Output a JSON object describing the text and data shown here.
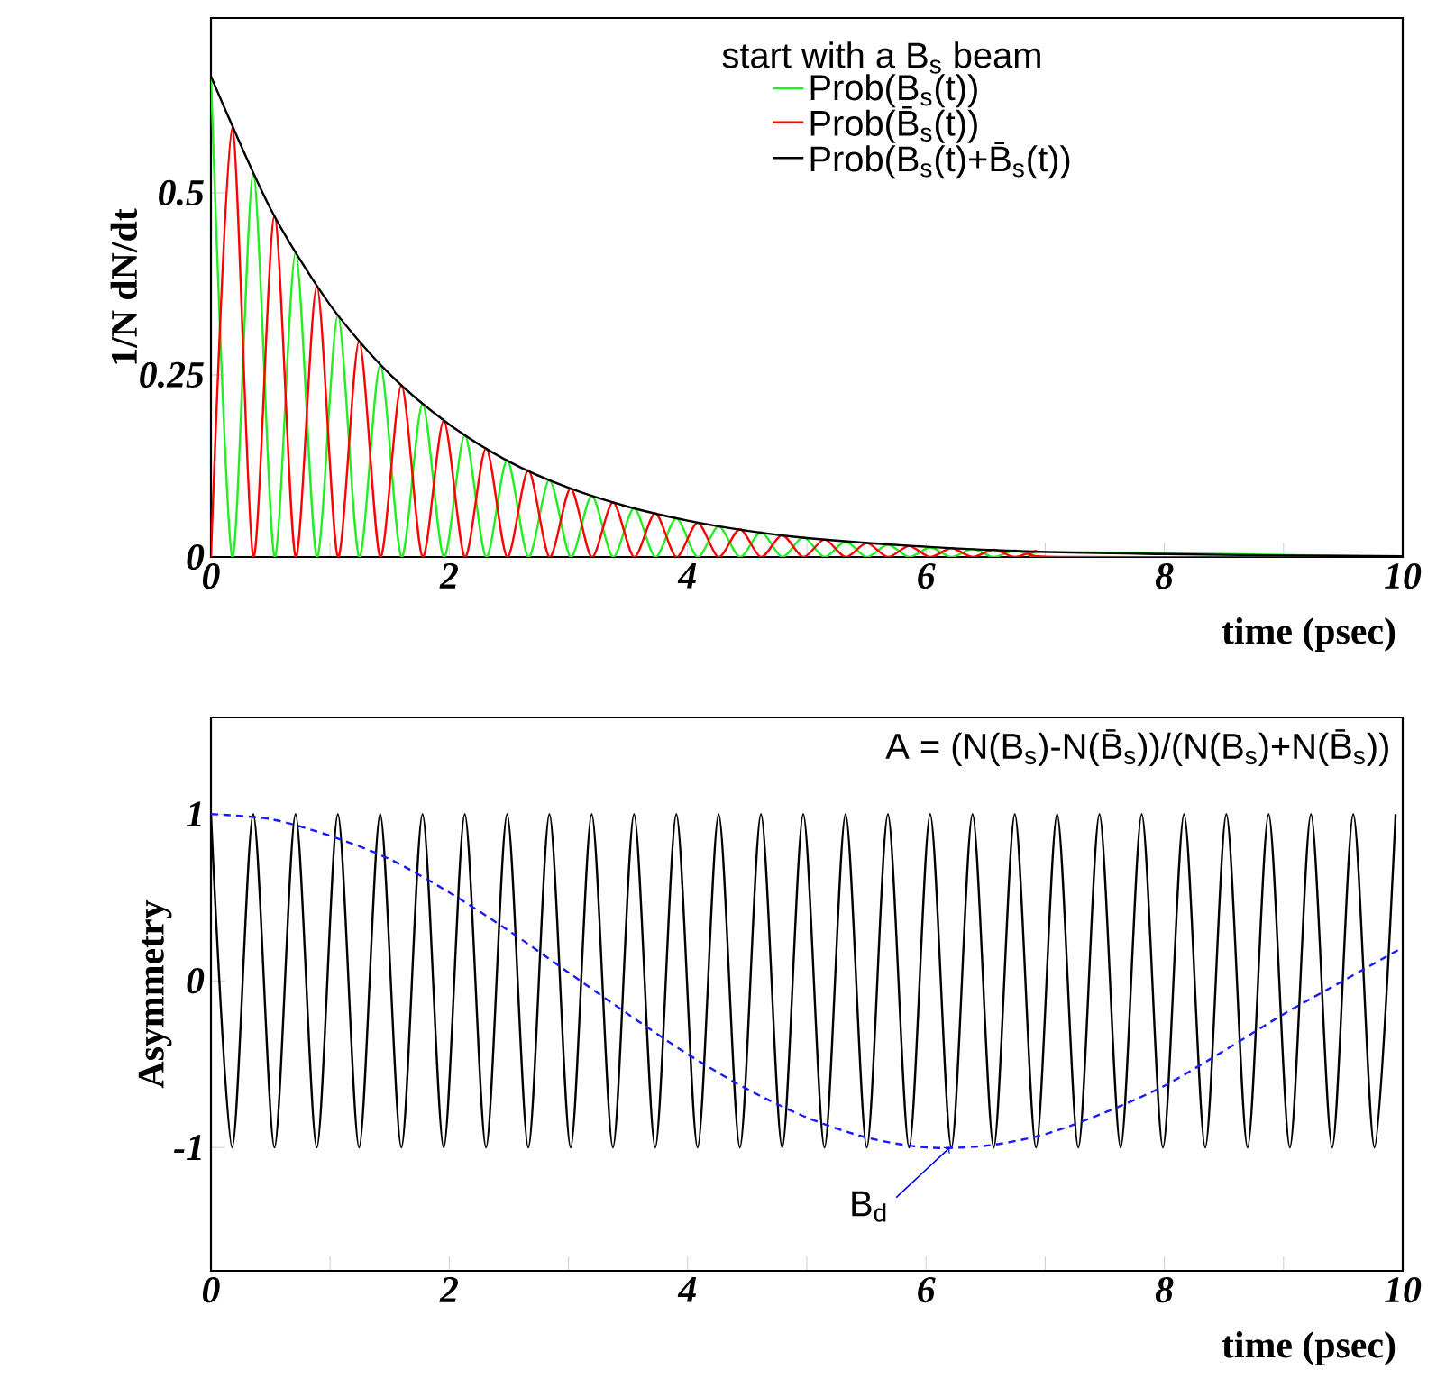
{
  "chart_data": [
    {
      "type": "line",
      "xlabel": "time (psec)",
      "ylabel": "1/N dN/dt",
      "xlim": [
        0,
        10
      ],
      "ylim": [
        0,
        0.74
      ],
      "xticks": [
        0,
        {
          "value": 1,
          "label": null
        },
        2,
        {
          "value": 3,
          "label": null
        },
        4,
        {
          "value": 5,
          "label": null
        },
        6,
        {
          "value": 7,
          "label": null
        },
        8,
        {
          "value": 9,
          "label": null
        },
        10
      ],
      "yticks": [
        0,
        0.25,
        0.5
      ],
      "legend": "top right",
      "legend_title": "start with a B$_{s}$ beam",
      "x": [
        0,
        0.178,
        0.355,
        0.533,
        0.71,
        0.888,
        1.065,
        1.243,
        1.42,
        1.598,
        1.775,
        1.953,
        2.13,
        2.308,
        2.485,
        2.663,
        2.84,
        3.018,
        3.195,
        3.373,
        3.55,
        3.728,
        3.905,
        4.083,
        4.26,
        4.438,
        4.615,
        4.793,
        4.97,
        5.148,
        5.325,
        5.503,
        5.68,
        5.858,
        6.035,
        6.213,
        6.39,
        6.568,
        6.745,
        6.923,
        7.1,
        10
      ],
      "series": [
        {
          "name": "Prob(B$_{s}$(t))",
          "color": "#22ee22",
          "values": [
            0.66,
            0,
            0.525,
            0,
            0.418,
            0,
            0.332,
            0,
            0.264,
            0,
            0.21,
            0,
            0.167,
            0,
            0.133,
            0,
            0.106,
            0,
            0.084,
            0,
            0.067,
            0,
            0.053,
            0,
            0.042,
            0,
            0.034,
            0,
            0.027,
            0,
            0.021,
            0,
            0.017,
            0,
            0.013,
            0,
            0.011,
            0,
            0.009,
            0,
            0.007,
            0
          ]
        },
        {
          "name": "Prob(B̄$_{s}$(t))",
          "color": "#ff0000",
          "values": [
            0,
            0.589,
            0,
            0.468,
            0,
            0.372,
            0,
            0.296,
            0,
            0.236,
            0,
            0.187,
            0,
            0.149,
            0,
            0.119,
            0,
            0.094,
            0,
            0.075,
            0,
            0.06,
            0,
            0.047,
            0,
            0.038,
            0,
            0.03,
            0,
            0.024,
            0,
            0.019,
            0,
            0.015,
            0,
            0.012,
            0,
            0.01,
            0,
            0.008,
            0,
            0
          ]
        },
        {
          "name": "Prob(B$_{s}$(t)+B̄$_{s}$(t))",
          "color": "#000000",
          "x": [
            0,
            0.5,
            1,
            1.5,
            2,
            2.5,
            3,
            3.5,
            4,
            4.5,
            5,
            6,
            7,
            8,
            9,
            10
          ],
          "values": [
            0.66,
            0.478,
            0.346,
            0.251,
            0.182,
            0.131,
            0.095,
            0.069,
            0.05,
            0.036,
            0.026,
            0.014,
            0.007,
            0.004,
            0.002,
            0.001
          ]
        }
      ]
    },
    {
      "type": "line",
      "xlabel": "time (psec)",
      "ylabel": "Asymmetry",
      "xlim": [
        0,
        10
      ],
      "ylim": [
        -1.74,
        1.58
      ],
      "xticks": [
        0,
        {
          "value": 1,
          "label": null
        },
        2,
        {
          "value": 3,
          "label": null
        },
        4,
        {
          "value": 5,
          "label": null
        },
        6,
        {
          "value": 7,
          "label": null
        },
        8,
        {
          "value": 9,
          "label": null
        },
        10
      ],
      "yticks": [
        -1,
        0,
        1
      ],
      "annotations": [
        "A = (N(B$_{s}$)-N(B̄$_{s}$))/(N(B$_{s}$)+N(B̄$_{s}$))",
        {
          "text": "B$_{d}$",
          "x": 6.2,
          "y": -1
        }
      ],
      "series": [
        {
          "color": "#000000",
          "x": [
            0,
            0.178,
            0.355,
            0.533,
            0.71,
            0.888,
            1.065,
            1.243,
            1.42,
            1.598,
            1.775,
            1.953,
            2.13,
            2.308,
            2.485,
            2.663,
            2.84,
            3.018,
            3.195,
            3.373,
            3.55,
            3.728,
            3.905,
            4.083,
            4.26,
            4.438,
            4.615,
            4.793,
            4.97,
            5.148,
            5.325,
            5.503,
            5.68,
            5.858,
            6.035,
            6.213,
            6.39,
            6.568,
            6.745,
            6.923,
            7.1,
            7.278,
            7.455,
            7.633,
            7.81,
            7.988,
            8.165,
            8.343,
            8.52,
            8.698,
            8.875,
            9.053,
            9.23,
            9.408,
            9.585,
            9.763,
            9.94
          ],
          "values": [
            1,
            -1,
            1,
            -1,
            1,
            -1,
            1,
            -1,
            1,
            -1,
            1,
            -1,
            1,
            -1,
            1,
            -1,
            1,
            -1,
            1,
            -1,
            1,
            -1,
            1,
            -1,
            1,
            -1,
            1,
            -1,
            1,
            -1,
            1,
            -1,
            1,
            -1,
            1,
            -1,
            1,
            -1,
            1,
            -1,
            1,
            -1,
            1,
            -1,
            1,
            -1,
            1,
            -1,
            1,
            -1,
            1,
            -1,
            1,
            -1,
            1,
            -1,
            1
          ]
        },
        {
          "color": "#1a1aff",
          "line_style": "dashed",
          "x": [
            0,
            0.5,
            1,
            1.5,
            2,
            2.5,
            3,
            3.5,
            4,
            4.5,
            5,
            5.5,
            6,
            6.5,
            7,
            7.5,
            8,
            8.5,
            9,
            9.5,
            10
          ],
          "values": [
            1,
            0.97,
            0.87,
            0.73,
            0.53,
            0.3,
            0.05,
            -0.2,
            -0.44,
            -0.65,
            -0.82,
            -0.94,
            -1,
            -0.99,
            -0.92,
            -0.79,
            -0.63,
            -0.42,
            -0.2,
            0,
            0.2
          ]
        }
      ]
    }
  ]
}
